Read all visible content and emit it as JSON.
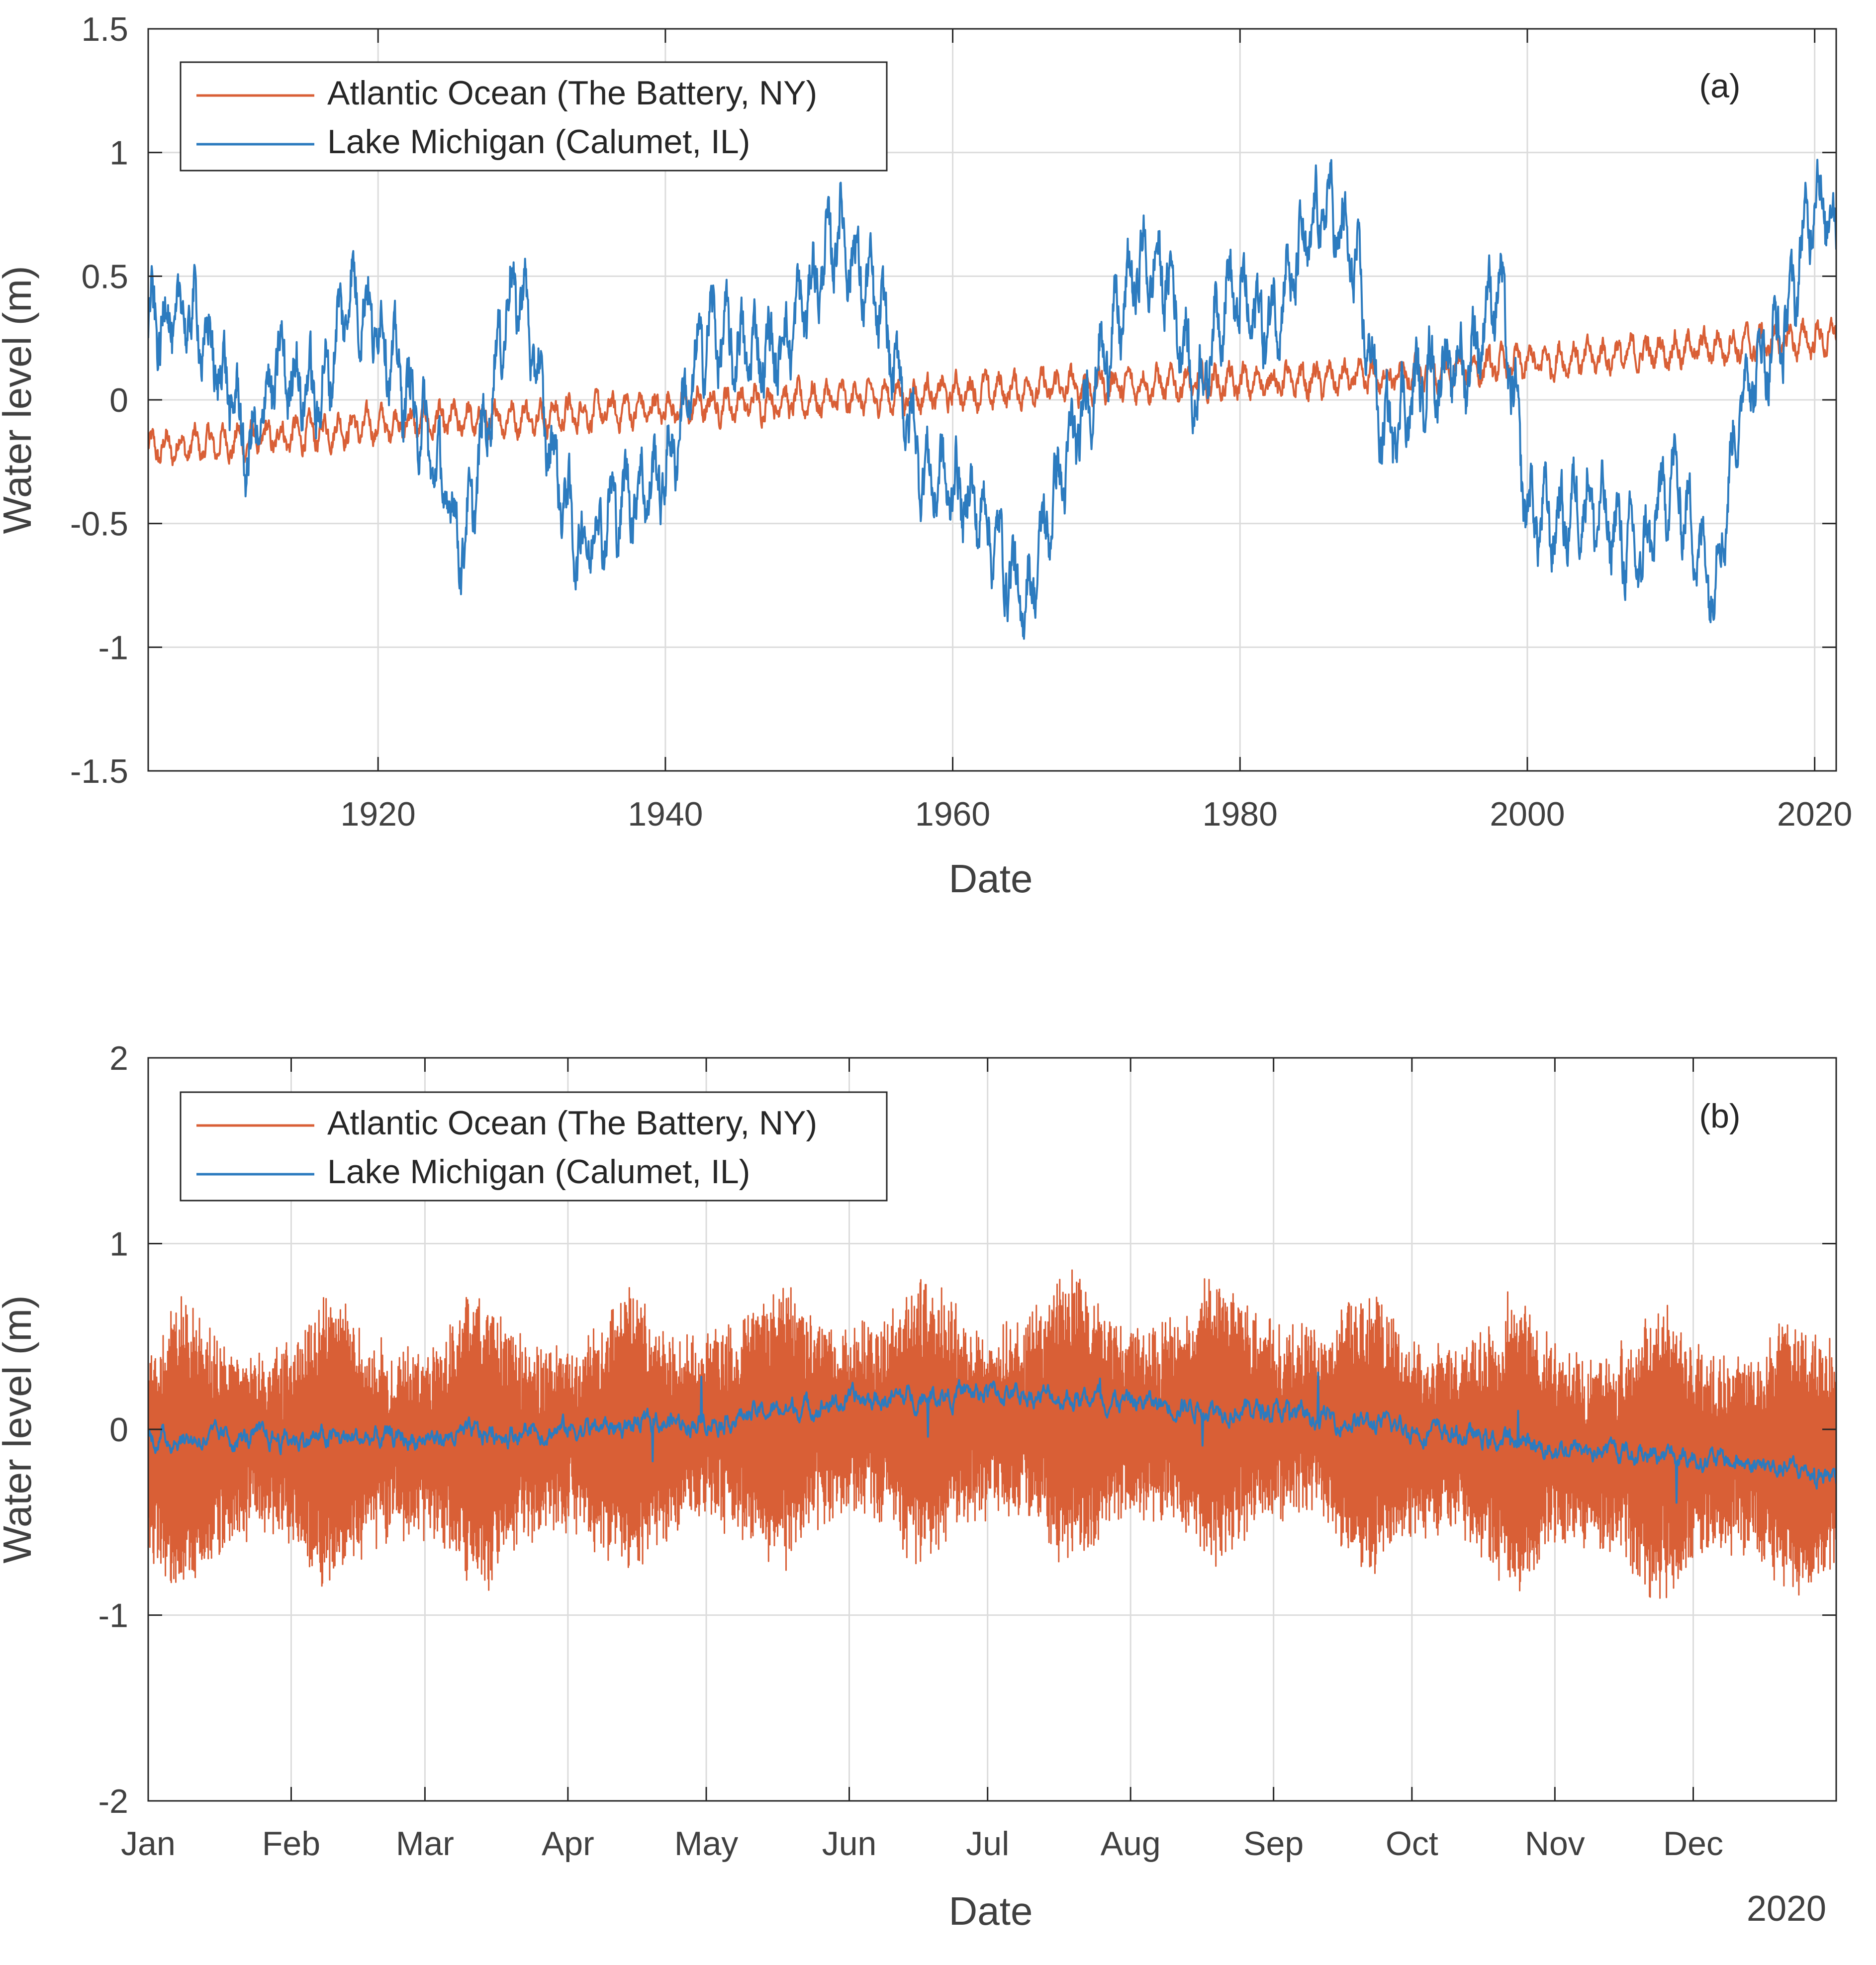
{
  "colors": {
    "atlantic": "#D95F36",
    "lake": "#2C7BBF",
    "axis": "#262626",
    "grid": "#DCDCDC",
    "text": "#404040"
  },
  "chart_data": [
    {
      "id": "a",
      "type": "line",
      "panel_label": "(a)",
      "xlabel": "Date",
      "ylabel": "Water level (m)",
      "xlim": [
        1904,
        2021.5
      ],
      "ylim": [
        -1.5,
        1.5
      ],
      "xticks": [
        1920,
        1940,
        1960,
        1980,
        2000,
        2020
      ],
      "xtick_labels": [
        "1920",
        "1940",
        "1960",
        "1980",
        "2000",
        "2020"
      ],
      "yticks": [
        -1.5,
        -1,
        -0.5,
        0,
        0.5,
        1,
        1.5
      ],
      "ytick_labels": [
        "-1.5",
        "-1",
        "-0.5",
        "0",
        "0.5",
        "1",
        "1.5"
      ],
      "grid": true,
      "legend_position": "top-left",
      "series": [
        {
          "name": "Atlantic Ocean (The Battery, NY)",
          "color_key": "atlantic",
          "x": [
            1904,
            1910,
            1920,
            1930,
            1940,
            1950,
            1960,
            1970,
            1980,
            1990,
            2000,
            2010,
            2021
          ],
          "values": [
            -0.2,
            -0.17,
            -0.1,
            -0.07,
            -0.03,
            0.0,
            0.03,
            0.06,
            0.07,
            0.09,
            0.15,
            0.2,
            0.25
          ],
          "noise_amp": 0.07
        },
        {
          "name": "Lake Michigan (Calumet, IL)",
          "color_key": "lake",
          "x": [
            1904,
            1907,
            1910,
            1911,
            1913,
            1916,
            1918,
            1920,
            1923,
            1926,
            1929,
            1930,
            1932,
            1934,
            1937,
            1940,
            1943,
            1945,
            1948,
            1951,
            1952,
            1955,
            1958,
            1960,
            1962,
            1964,
            1965,
            1967,
            1970,
            1973,
            1975,
            1977,
            1979,
            1982,
            1986,
            1988,
            1990,
            1993,
            1996,
            1998,
            2000,
            2002,
            2004,
            2008,
            2010,
            2013,
            2015,
            2018,
            2020,
            2021.5
          ],
          "values": [
            0.3,
            0.35,
            0.0,
            -0.25,
            0.15,
            0.0,
            0.45,
            0.3,
            -0.1,
            -0.6,
            0.4,
            0.45,
            -0.2,
            -0.6,
            -0.4,
            -0.3,
            0.3,
            0.2,
            0.2,
            0.55,
            0.7,
            0.35,
            -0.3,
            -0.35,
            -0.45,
            -0.7,
            -0.85,
            -0.4,
            0.1,
            0.55,
            0.5,
            0.0,
            0.45,
            0.3,
            0.8,
            0.55,
            -0.15,
            0.1,
            0.15,
            0.5,
            -0.45,
            -0.5,
            -0.4,
            -0.65,
            -0.3,
            -0.75,
            0.05,
            0.3,
            0.85,
            0.7
          ],
          "noise_amp": 0.19
        }
      ]
    },
    {
      "id": "b",
      "type": "line",
      "panel_label": "(b)",
      "xlabel": "Date",
      "ylabel": "Water level (m)",
      "year_label": "2020",
      "xlim": [
        0,
        366
      ],
      "ylim": [
        -2,
        2
      ],
      "xticks": [
        0,
        31,
        60,
        91,
        121,
        152,
        182,
        213,
        244,
        274,
        305,
        335
      ],
      "xtick_labels": [
        "Jan",
        "Feb",
        "Mar",
        "Apr",
        "May",
        "Jun",
        "Jul",
        "Aug",
        "Sep",
        "Oct",
        "Nov",
        "Dec"
      ],
      "yticks": [
        -2,
        -1,
        0,
        1,
        2
      ],
      "ytick_labels": [
        "-2",
        "-1",
        "0",
        "1",
        "2"
      ],
      "grid": true,
      "legend_position": "top-left",
      "series": [
        {
          "name": "Atlantic Ocean (The Battery, NY)",
          "color_key": "atlantic",
          "baseline_x": [
            0,
            90,
            150,
            240,
            300,
            366
          ],
          "baseline": [
            -0.1,
            -0.05,
            0.05,
            0.05,
            -0.1,
            -0.15
          ],
          "tidal_amplitude": 0.68,
          "envelope_peaks_x": [
            8,
            40,
            72,
            104,
            136,
            168,
            200,
            232,
            264,
            296,
            328,
            358
          ],
          "noise_amp": 0.18
        },
        {
          "name": "Lake Michigan (Calumet, IL)",
          "color_key": "lake",
          "x": [
            0,
            31,
            60,
            91,
            121,
            152,
            182,
            213,
            244,
            274,
            305,
            335,
            366
          ],
          "values": [
            -0.05,
            -0.05,
            -0.05,
            0.0,
            0.05,
            0.15,
            0.2,
            0.15,
            0.1,
            0.0,
            -0.1,
            -0.15,
            -0.25
          ],
          "noise_amp": 0.06
        }
      ]
    }
  ]
}
